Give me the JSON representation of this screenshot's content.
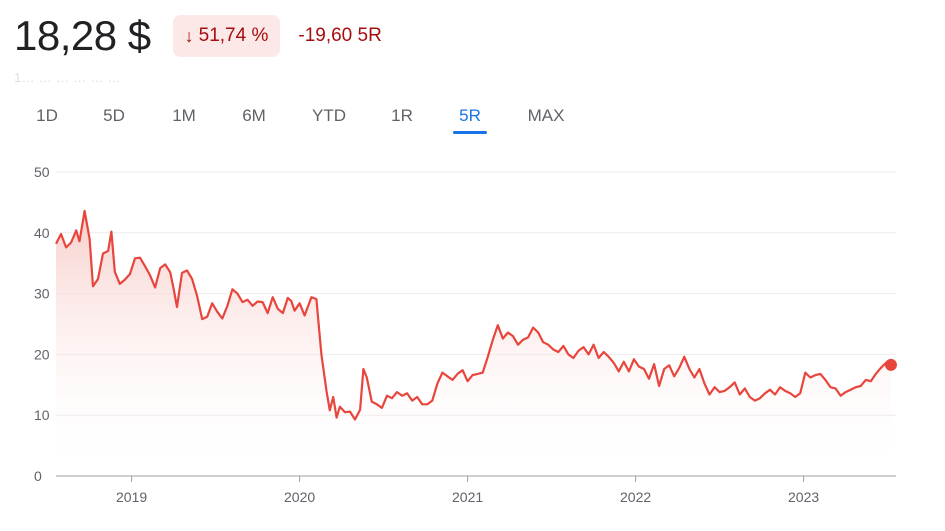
{
  "header": {
    "price": "18,28 $",
    "change_arrow": "↓",
    "change_percent": "51,74 %",
    "change_abs": "-19,60 5R"
  },
  "subline": "1…  …  …  …  …  …",
  "tabs": [
    {
      "label": "1D",
      "active": false
    },
    {
      "label": "5D",
      "active": false
    },
    {
      "label": "1M",
      "active": false
    },
    {
      "label": "6M",
      "active": false
    },
    {
      "label": "YTD",
      "active": false
    },
    {
      "label": "1R",
      "active": false
    },
    {
      "label": "5R",
      "active": true
    },
    {
      "label": "MAX",
      "active": false
    }
  ],
  "colors": {
    "line": "#e8453c",
    "fill_top": "#f6c6c2",
    "grid": "#ececec",
    "badge_bg": "#fce8e6",
    "negative_text": "#a50e0e",
    "active_tab": "#1a73e8"
  },
  "chart_data": {
    "type": "area",
    "ylim": [
      0,
      50
    ],
    "yticks": [
      0,
      10,
      20,
      30,
      40,
      50
    ],
    "xlim": [
      2018.55,
      2023.55
    ],
    "xticks": [
      {
        "value": 2019.0,
        "label": "2019"
      },
      {
        "value": 2020.0,
        "label": "2020"
      },
      {
        "value": 2021.0,
        "label": "2021"
      },
      {
        "value": 2022.0,
        "label": "2022"
      },
      {
        "value": 2023.0,
        "label": "2023"
      }
    ],
    "grid": true,
    "end_marker": true,
    "series": [
      {
        "points": [
          [
            2018.55,
            38.2
          ],
          [
            2018.58,
            39.8
          ],
          [
            2018.61,
            37.6
          ],
          [
            2018.64,
            38.4
          ],
          [
            2018.67,
            40.4
          ],
          [
            2018.69,
            38.6
          ],
          [
            2018.72,
            43.6
          ],
          [
            2018.75,
            39.0
          ],
          [
            2018.77,
            31.2
          ],
          [
            2018.8,
            32.4
          ],
          [
            2018.83,
            36.6
          ],
          [
            2018.86,
            37.0
          ],
          [
            2018.88,
            40.2
          ],
          [
            2018.9,
            33.6
          ],
          [
            2018.93,
            31.6
          ],
          [
            2018.96,
            32.3
          ],
          [
            2018.99,
            33.2
          ],
          [
            2019.02,
            35.8
          ],
          [
            2019.05,
            35.9
          ],
          [
            2019.08,
            34.5
          ],
          [
            2019.11,
            33.0
          ],
          [
            2019.14,
            31.0
          ],
          [
            2019.17,
            34.2
          ],
          [
            2019.2,
            34.8
          ],
          [
            2019.23,
            33.5
          ],
          [
            2019.25,
            30.8
          ],
          [
            2019.27,
            27.8
          ],
          [
            2019.3,
            33.4
          ],
          [
            2019.33,
            33.8
          ],
          [
            2019.36,
            32.4
          ],
          [
            2019.39,
            29.6
          ],
          [
            2019.42,
            25.8
          ],
          [
            2019.45,
            26.2
          ],
          [
            2019.48,
            28.4
          ],
          [
            2019.51,
            27.0
          ],
          [
            2019.54,
            25.9
          ],
          [
            2019.57,
            28.0
          ],
          [
            2019.6,
            30.7
          ],
          [
            2019.63,
            30.0
          ],
          [
            2019.66,
            28.6
          ],
          [
            2019.69,
            29.0
          ],
          [
            2019.72,
            28.0
          ],
          [
            2019.75,
            28.7
          ],
          [
            2019.78,
            28.6
          ],
          [
            2019.81,
            26.8
          ],
          [
            2019.84,
            29.4
          ],
          [
            2019.87,
            27.5
          ],
          [
            2019.9,
            26.8
          ],
          [
            2019.93,
            29.3
          ],
          [
            2019.95,
            28.8
          ],
          [
            2019.97,
            27.2
          ],
          [
            2020.0,
            28.4
          ],
          [
            2020.03,
            26.4
          ],
          [
            2020.07,
            29.4
          ],
          [
            2020.1,
            29.1
          ],
          [
            2020.13,
            20.0
          ],
          [
            2020.16,
            14.0
          ],
          [
            2020.18,
            10.8
          ],
          [
            2020.2,
            13.0
          ],
          [
            2020.22,
            9.6
          ],
          [
            2020.24,
            11.4
          ],
          [
            2020.27,
            10.5
          ],
          [
            2020.3,
            10.6
          ],
          [
            2020.33,
            9.3
          ],
          [
            2020.36,
            10.9
          ],
          [
            2020.38,
            17.6
          ],
          [
            2020.4,
            16.2
          ],
          [
            2020.43,
            12.2
          ],
          [
            2020.46,
            11.8
          ],
          [
            2020.49,
            11.2
          ],
          [
            2020.52,
            13.2
          ],
          [
            2020.55,
            12.8
          ],
          [
            2020.58,
            13.8
          ],
          [
            2020.61,
            13.2
          ],
          [
            2020.64,
            13.6
          ],
          [
            2020.67,
            12.4
          ],
          [
            2020.7,
            13.0
          ],
          [
            2020.73,
            11.8
          ],
          [
            2020.76,
            11.8
          ],
          [
            2020.79,
            12.4
          ],
          [
            2020.82,
            15.2
          ],
          [
            2020.85,
            17.0
          ],
          [
            2020.88,
            16.4
          ],
          [
            2020.91,
            15.8
          ],
          [
            2020.94,
            16.8
          ],
          [
            2020.97,
            17.4
          ],
          [
            2021.0,
            15.6
          ],
          [
            2021.03,
            16.6
          ],
          [
            2021.06,
            16.8
          ],
          [
            2021.09,
            17.0
          ],
          [
            2021.12,
            19.6
          ],
          [
            2021.15,
            22.4
          ],
          [
            2021.18,
            24.8
          ],
          [
            2021.21,
            22.6
          ],
          [
            2021.24,
            23.6
          ],
          [
            2021.27,
            23.0
          ],
          [
            2021.3,
            21.6
          ],
          [
            2021.33,
            22.4
          ],
          [
            2021.36,
            22.8
          ],
          [
            2021.39,
            24.4
          ],
          [
            2021.42,
            23.6
          ],
          [
            2021.45,
            22.0
          ],
          [
            2021.48,
            21.6
          ],
          [
            2021.51,
            20.8
          ],
          [
            2021.54,
            20.4
          ],
          [
            2021.57,
            21.4
          ],
          [
            2021.6,
            20.0
          ],
          [
            2021.63,
            19.4
          ],
          [
            2021.66,
            20.6
          ],
          [
            2021.69,
            21.2
          ],
          [
            2021.72,
            20.0
          ],
          [
            2021.75,
            21.6
          ],
          [
            2021.78,
            19.4
          ],
          [
            2021.81,
            20.4
          ],
          [
            2021.84,
            19.6
          ],
          [
            2021.87,
            18.6
          ],
          [
            2021.9,
            17.2
          ],
          [
            2021.93,
            18.8
          ],
          [
            2021.96,
            17.2
          ],
          [
            2021.99,
            19.2
          ],
          [
            2022.02,
            18.0
          ],
          [
            2022.05,
            17.6
          ],
          [
            2022.08,
            16.0
          ],
          [
            2022.11,
            18.4
          ],
          [
            2022.14,
            14.8
          ],
          [
            2022.17,
            17.6
          ],
          [
            2022.2,
            18.2
          ],
          [
            2022.23,
            16.4
          ],
          [
            2022.26,
            17.8
          ],
          [
            2022.29,
            19.6
          ],
          [
            2022.32,
            17.6
          ],
          [
            2022.35,
            16.2
          ],
          [
            2022.38,
            17.6
          ],
          [
            2022.41,
            15.2
          ],
          [
            2022.44,
            13.4
          ],
          [
            2022.47,
            14.6
          ],
          [
            2022.5,
            13.8
          ],
          [
            2022.53,
            14.0
          ],
          [
            2022.56,
            14.6
          ],
          [
            2022.59,
            15.4
          ],
          [
            2022.62,
            13.4
          ],
          [
            2022.65,
            14.4
          ],
          [
            2022.68,
            13.0
          ],
          [
            2022.71,
            12.4
          ],
          [
            2022.74,
            12.8
          ],
          [
            2022.77,
            13.6
          ],
          [
            2022.8,
            14.2
          ],
          [
            2022.83,
            13.4
          ],
          [
            2022.86,
            14.6
          ],
          [
            2022.89,
            14.0
          ],
          [
            2022.92,
            13.6
          ],
          [
            2022.95,
            13.0
          ],
          [
            2022.98,
            13.6
          ],
          [
            2023.01,
            17.0
          ],
          [
            2023.04,
            16.2
          ],
          [
            2023.07,
            16.6
          ],
          [
            2023.1,
            16.8
          ],
          [
            2023.13,
            15.8
          ],
          [
            2023.16,
            14.6
          ],
          [
            2023.19,
            14.4
          ],
          [
            2023.22,
            13.2
          ],
          [
            2023.25,
            13.8
          ],
          [
            2023.28,
            14.2
          ],
          [
            2023.31,
            14.6
          ],
          [
            2023.34,
            14.8
          ],
          [
            2023.37,
            15.8
          ],
          [
            2023.4,
            15.6
          ],
          [
            2023.43,
            16.8
          ],
          [
            2023.46,
            17.8
          ],
          [
            2023.49,
            18.6
          ],
          [
            2023.52,
            18.28
          ]
        ]
      }
    ]
  }
}
